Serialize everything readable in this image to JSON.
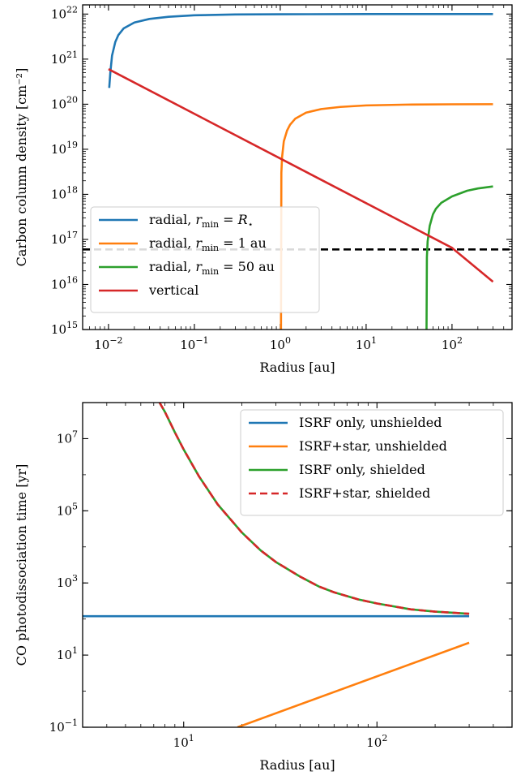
{
  "chart_data": [
    {
      "type": "line",
      "xlabel": "Radius [au]",
      "ylabel": "Carbon column density [cm⁻²]",
      "xscale": "log",
      "yscale": "log",
      "xlim": [
        0.005,
        500
      ],
      "ylim": [
        1000000000000000.0,
        1.6e+22
      ],
      "xticks": [
        {
          "base": "10",
          "exp": "−2",
          "value": 0.01
        },
        {
          "base": "10",
          "exp": "−1",
          "value": 0.1
        },
        {
          "base": "10",
          "exp": "0",
          "value": 1
        },
        {
          "base": "10",
          "exp": "1",
          "value": 10
        },
        {
          "base": "10",
          "exp": "2",
          "value": 100
        }
      ],
      "yticks": [
        {
          "base": "10",
          "exp": "15",
          "value": 1000000000000000.0
        },
        {
          "base": "10",
          "exp": "16",
          "value": 1e+16
        },
        {
          "base": "10",
          "exp": "17",
          "value": 1e+17
        },
        {
          "base": "10",
          "exp": "18",
          "value": 1e+18
        },
        {
          "base": "10",
          "exp": "19",
          "value": 1e+19
        },
        {
          "base": "10",
          "exp": "20",
          "value": 1e+20
        },
        {
          "base": "10",
          "exp": "21",
          "value": 1e+21
        },
        {
          "base": "10",
          "exp": "22",
          "value": 1e+22
        }
      ],
      "legend_position": "lower-left",
      "series": [
        {
          "name": "radial, r_min = R⋆",
          "label_parts": [
            "radial, ",
            "r",
            "min",
            " = ",
            "R",
            "⋆",
            ""
          ],
          "color": "#1f77b4",
          "style": "solid",
          "x": [
            0.0102,
            0.0105,
            0.011,
            0.012,
            0.013,
            0.015,
            0.02,
            0.03,
            0.05,
            0.1,
            0.3,
            1,
            10,
            300
          ],
          "y": [
            2.3e+20,
            5e+20,
            1.2e+21,
            2.4e+21,
            3.4e+21,
            4.8e+21,
            6.5e+21,
            7.8e+21,
            8.7e+21,
            9.4e+21,
            9.8e+21,
            9.9e+21,
            1e+22,
            1e+22
          ]
        },
        {
          "name": "radial, r_min = 1 au",
          "label_parts": [
            "radial, ",
            "r",
            "min",
            " = 1 au",
            "",
            "",
            ""
          ],
          "color": "#ff7f0e",
          "style": "solid",
          "x": [
            1.02,
            1.03,
            1.05,
            1.1,
            1.2,
            1.3,
            1.5,
            2,
            3,
            5,
            10,
            30,
            100,
            300
          ],
          "y": [
            1000000000000000.0,
            3e+18,
            6.7e+18,
            1.5e+19,
            2.6e+19,
            3.5e+19,
            4.8e+19,
            6.5e+19,
            7.8e+19,
            8.7e+19,
            9.4e+19,
            9.8e+19,
            9.95e+19,
            1e+20
          ]
        },
        {
          "name": "radial, r_min = 50 au",
          "label_parts": [
            "radial, ",
            "r",
            "min",
            " = 50 au",
            "",
            "",
            ""
          ],
          "color": "#2ca02c",
          "style": "solid",
          "x": [
            50.5,
            51,
            52,
            55,
            60,
            65,
            75,
            100,
            150,
            200,
            300
          ],
          "y": [
            1000000000000000.0,
            4e+16,
            9e+16,
            2e+17,
            3.6e+17,
            4.8e+17,
            6.5e+17,
            9e+17,
            1.2e+18,
            1.35e+18,
            1.5e+18
          ]
        },
        {
          "name": "vertical",
          "label_parts": [
            "vertical",
            "",
            "",
            "",
            "",
            "",
            ""
          ],
          "color": "#d62728",
          "style": "solid",
          "x": [
            0.01,
            100,
            300
          ],
          "y": [
            6e+20,
            6.5e+16,
            1.15e+16
          ]
        }
      ],
      "hline": {
        "y": 6e+16,
        "color": "#000000",
        "style": "dashed"
      }
    },
    {
      "type": "line",
      "xlabel": "Radius [au]",
      "ylabel": "CO photodissociation time [yr]",
      "xscale": "log",
      "yscale": "log",
      "xlim": [
        3,
        500
      ],
      "ylim": [
        0.1,
        100000000.0
      ],
      "xticks": [
        {
          "base": "10",
          "exp": "1",
          "value": 10
        },
        {
          "base": "10",
          "exp": "2",
          "value": 100
        }
      ],
      "yticks": [
        {
          "base": "10",
          "exp": "−1",
          "value": 0.1
        },
        {
          "base": "10",
          "exp": "1",
          "value": 10
        },
        {
          "base": "10",
          "exp": "3",
          "value": 1000
        },
        {
          "base": "10",
          "exp": "5",
          "value": 100000
        },
        {
          "base": "10",
          "exp": "7",
          "value": 10000000
        }
      ],
      "legend_position": "upper-right",
      "series": [
        {
          "name": "ISRF only, unshielded",
          "color": "#1f77b4",
          "style": "solid",
          "x": [
            3,
            300
          ],
          "y": [
            120,
            120
          ]
        },
        {
          "name": "ISRF+star, unshielded",
          "color": "#ff7f0e",
          "style": "solid",
          "x": [
            19,
            300
          ],
          "y": [
            0.1,
            22
          ]
        },
        {
          "name": "ISRF only, shielded",
          "color": "#2ca02c",
          "style": "solid",
          "x": [
            7.5,
            8,
            9,
            10,
            12,
            15,
            20,
            25,
            30,
            40,
            50,
            60,
            80,
            100,
            150,
            200,
            300
          ],
          "y": [
            100000000.0,
            55000000.0,
            15000000.0,
            5000000.0,
            900000.0,
            150000.0,
            25000.0,
            8000,
            3800,
            1500,
            800,
            550,
            350,
            270,
            185,
            160,
            140
          ]
        },
        {
          "name": "ISRF+star, shielded",
          "color": "#d62728",
          "style": "dashed",
          "x": [
            7.5,
            8,
            9,
            10,
            12,
            15,
            20,
            25,
            30,
            40,
            50,
            60,
            80,
            100,
            150,
            200,
            300
          ],
          "y": [
            100000000.0,
            55000000.0,
            15000000.0,
            5000000.0,
            900000.0,
            150000.0,
            25000.0,
            8000,
            3800,
            1500,
            800,
            550,
            350,
            270,
            185,
            160,
            140
          ]
        }
      ]
    }
  ]
}
